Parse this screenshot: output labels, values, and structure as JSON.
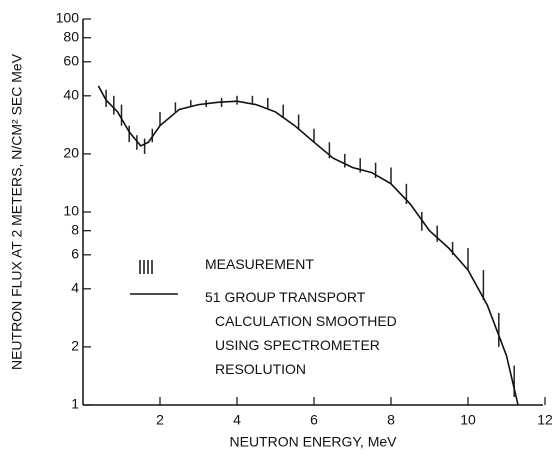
{
  "chart_data": {
    "type": "line",
    "xlabel": "NEUTRON ENERGY, MeV",
    "ylabel": "NEUTRON FLUX AT 2 METERS, N/CM² SEC MeV",
    "xlim": [
      0,
      12
    ],
    "xticks": [
      2,
      4,
      6,
      8,
      10,
      12
    ],
    "ylim": [
      1,
      100
    ],
    "yticks": [
      1,
      2,
      4,
      6,
      8,
      10,
      20,
      40,
      60,
      80,
      100
    ],
    "log_y": true,
    "grid": false,
    "series": [
      {
        "name": "MEASUREMENT",
        "kind": "errorbar",
        "color": "#222222",
        "x": [
          0.6,
          0.8,
          1.0,
          1.2,
          1.4,
          1.6,
          1.8,
          2.0,
          2.4,
          2.8,
          3.2,
          3.6,
          4.0,
          4.4,
          4.8,
          5.2,
          5.6,
          6.0,
          6.4,
          6.8,
          7.2,
          7.6,
          8.0,
          8.4,
          8.8,
          9.2,
          9.6,
          10.0,
          10.4,
          10.8,
          11.2
        ],
        "low": [
          35,
          32,
          28,
          23,
          21,
          20,
          23,
          28,
          33,
          35,
          35,
          35,
          36,
          36,
          34,
          31,
          27,
          23,
          19,
          17,
          16,
          15,
          14,
          11,
          8,
          7,
          6,
          5,
          3.5,
          2,
          1.1
        ],
        "high": [
          43,
          40,
          36,
          28,
          25,
          24,
          27,
          33,
          37,
          38,
          38,
          39,
          40,
          40,
          39,
          36,
          32,
          27,
          23,
          20,
          19,
          18,
          17,
          14,
          10,
          8.5,
          7,
          6.5,
          5,
          3,
          1.6
        ]
      },
      {
        "name": "51 GROUP TRANSPORT\nCALCULATION SMOOTHED\nUSING SPECTROMETER\nRESOLUTION",
        "kind": "line",
        "color": "#111111",
        "x": [
          0.4,
          0.6,
          0.9,
          1.2,
          1.5,
          1.7,
          2.0,
          2.5,
          3.0,
          3.5,
          4.0,
          4.5,
          5.0,
          5.5,
          6.0,
          6.5,
          7.0,
          7.5,
          8.0,
          8.5,
          9.0,
          9.5,
          10.0,
          10.5,
          11.0,
          11.3
        ],
        "values": [
          45,
          38,
          33,
          26,
          22,
          23,
          28,
          34,
          36,
          37,
          37.5,
          36,
          33,
          28,
          23,
          19,
          17,
          16,
          14,
          11,
          8,
          6.5,
          5,
          3.3,
          1.8,
          1
        ]
      }
    ]
  }
}
